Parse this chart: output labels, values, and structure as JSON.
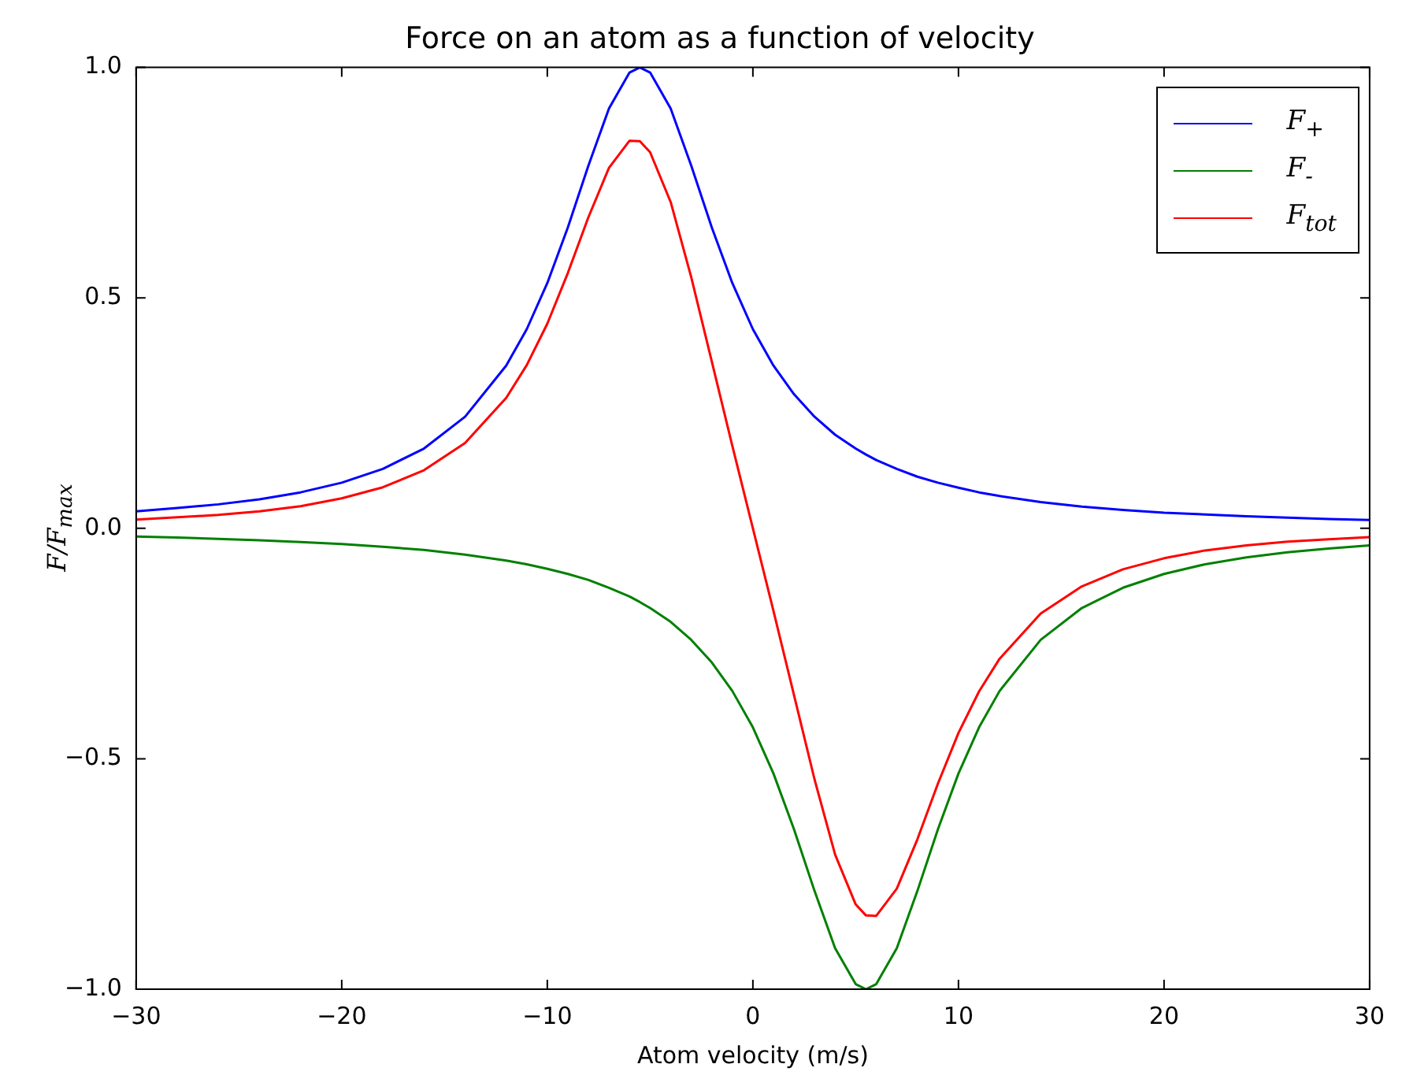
{
  "chart_data": {
    "type": "line",
    "title": "Force on an atom as a function of velocity",
    "xlabel": "Atom velocity (m/s)",
    "ylabel": "F/F$_{max}$",
    "x": [
      -30,
      -28,
      -26,
      -24,
      -22,
      -20,
      -18,
      -16,
      -14,
      -12,
      -11,
      -10,
      -9,
      -8,
      -7,
      -6,
      -5.5,
      -5,
      -4,
      -3,
      -2,
      -1,
      0,
      1,
      2,
      3,
      4,
      5,
      5.5,
      6,
      7,
      8,
      9,
      10,
      11,
      12,
      14,
      16,
      18,
      20,
      22,
      24,
      26,
      28,
      30
    ],
    "series": [
      {
        "name": "F$_{+}$",
        "color": "#0000ff",
        "values": [
          0.037,
          0.044,
          0.052,
          0.063,
          0.078,
          0.099,
          0.129,
          0.173,
          0.242,
          0.353,
          0.432,
          0.532,
          0.653,
          0.787,
          0.911,
          0.989,
          1,
          0.989,
          0.911,
          0.787,
          0.653,
          0.532,
          0.432,
          0.353,
          0.291,
          0.242,
          0.203,
          0.173,
          0.16,
          0.148,
          0.129,
          0.112,
          0.099,
          0.088,
          0.078,
          0.07,
          0.057,
          0.047,
          0.04,
          0.034,
          0.03,
          0.026,
          0.023,
          0.02,
          0.018
        ]
      },
      {
        "name": "F$_{-}$",
        "color": "#008000",
        "values": [
          -0.018,
          -0.02,
          -0.023,
          -0.026,
          -0.03,
          -0.034,
          -0.04,
          -0.047,
          -0.057,
          -0.07,
          -0.078,
          -0.088,
          -0.099,
          -0.112,
          -0.129,
          -0.148,
          -0.16,
          -0.173,
          -0.203,
          -0.242,
          -0.291,
          -0.353,
          -0.432,
          -0.532,
          -0.653,
          -0.787,
          -0.911,
          -0.989,
          -1,
          -0.989,
          -0.911,
          -0.787,
          -0.653,
          -0.532,
          -0.432,
          -0.353,
          -0.242,
          -0.173,
          -0.129,
          -0.099,
          -0.078,
          -0.063,
          -0.052,
          -0.044,
          -0.037
        ]
      },
      {
        "name": "F$_{tot}$",
        "color": "#ff0000",
        "values": [
          0.019,
          0.024,
          0.029,
          0.037,
          0.048,
          0.065,
          0.089,
          0.126,
          0.185,
          0.283,
          0.354,
          0.444,
          0.554,
          0.675,
          0.782,
          0.841,
          0.84,
          0.816,
          0.708,
          0.545,
          0.362,
          0.179,
          0,
          -0.179,
          -0.362,
          -0.545,
          -0.708,
          -0.816,
          -0.84,
          -0.841,
          -0.782,
          -0.675,
          -0.554,
          -0.444,
          -0.354,
          -0.283,
          -0.185,
          -0.126,
          -0.089,
          -0.065,
          -0.048,
          -0.037,
          -0.029,
          -0.024,
          -0.019
        ]
      }
    ],
    "xlim": [
      -30,
      30
    ],
    "xticks": [
      {
        "value": -30,
        "label": "−30"
      },
      {
        "value": -20,
        "label": "−20"
      },
      {
        "value": -10,
        "label": "−10"
      },
      0,
      10,
      20,
      30
    ],
    "ylim": [
      -1,
      1
    ],
    "yticks": [
      {
        "value": -1,
        "label": "−1.0"
      },
      {
        "value": -0.5,
        "label": "−0.5"
      },
      {
        "value": 0,
        "label": "0.0"
      },
      {
        "value": 0.5,
        "label": "0.5"
      },
      {
        "value": 1,
        "label": "1.0"
      }
    ],
    "grid": false,
    "legend": "top right",
    "marker": "none",
    "line_style": "solid"
  }
}
